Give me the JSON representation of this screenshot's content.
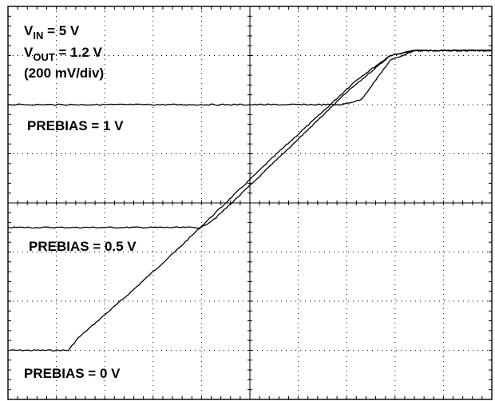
{
  "chart_data": {
    "type": "line",
    "title": "",
    "xlabel": "",
    "ylabel": "",
    "annotations": {
      "vin_sym": "V",
      "vin_sub": "IN",
      "vin_rest": " = 5 V",
      "vout_sym": "V",
      "vout_sub": "OUT",
      "vout_rest": " = 1.2 V",
      "scale": "(200 mV/div)"
    },
    "xlim": [
      0,
      10
    ],
    "ylim": [
      -0.2,
      1.4
    ],
    "grid": true,
    "x_divisions": 10,
    "y_divisions": 8,
    "series": [
      {
        "name": "PREBIAS = 0 V",
        "x": [
          0,
          1.25,
          1.45,
          2.5,
          3.5,
          4.5,
          5.5,
          6.5,
          7.2,
          7.9,
          8.4,
          10
        ],
        "values": [
          0.0,
          0.0,
          0.05,
          0.23,
          0.41,
          0.6,
          0.79,
          0.97,
          1.1,
          1.2,
          1.22,
          1.22
        ]
      },
      {
        "name": "PREBIAS = 0.5 V",
        "x": [
          0,
          4.0,
          4.3,
          5.0,
          6.0,
          7.0,
          7.9,
          8.4,
          10
        ],
        "values": [
          0.5,
          0.5,
          0.54,
          0.67,
          0.86,
          1.05,
          1.2,
          1.22,
          1.22
        ]
      },
      {
        "name": "PREBIAS = 1 V",
        "x": [
          0,
          6.9,
          7.3,
          7.9,
          8.4,
          10
        ],
        "values": [
          1.0,
          1.0,
          1.02,
          1.18,
          1.22,
          1.22
        ]
      }
    ]
  }
}
